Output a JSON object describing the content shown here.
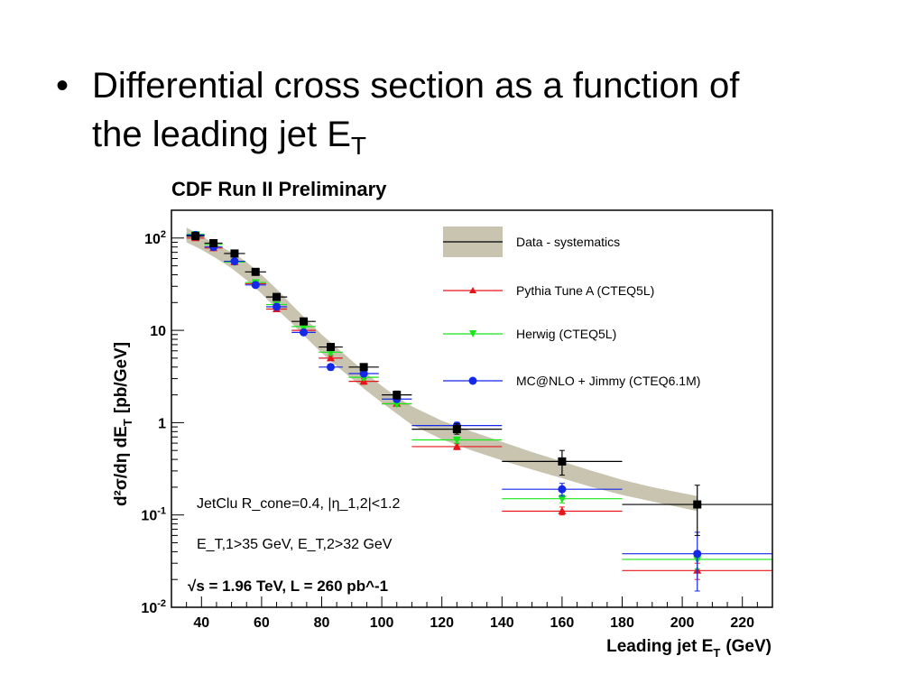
{
  "slide": {
    "bullet_symbol": "•",
    "bullet_line1": "Differential cross section as a function of",
    "bullet_line2_prefix": "the leading jet E",
    "bullet_line2_sub": "T"
  },
  "chart_data": {
    "type": "scatter",
    "title": "CDF Run II Preliminary",
    "xlabel": "Leading jet E",
    "xlabel_sub": "T",
    "xlabel_unit": "(GeV)",
    "ylabel": "d²σ/dη dE",
    "ylabel_sub": "T",
    "ylabel_unit": "[pb/GeV]",
    "xlim": [
      30,
      230
    ],
    "ylim": [
      0.01,
      200
    ],
    "yscale": "log",
    "xticks": [
      40,
      60,
      80,
      100,
      120,
      140,
      160,
      180,
      200,
      220
    ],
    "yticks": [
      {
        "value": 0.01,
        "base": "10",
        "exp": "-2"
      },
      {
        "value": 0.1,
        "base": "10",
        "exp": "-1"
      },
      {
        "value": 1,
        "base": "1",
        "exp": ""
      },
      {
        "value": 10,
        "base": "10",
        "exp": ""
      },
      {
        "value": 100,
        "base": "10",
        "exp": "2"
      }
    ],
    "legend_position": "top-right",
    "annotations": {
      "line1": "JetClu R_cone=0.4, |η_1,2|<1.2",
      "line2": "E_T,1>35 GeV, E_T,2>32 GeV",
      "line3": "√s = 1.96 TeV, L = 260 pb^-1"
    },
    "systematics_band": {
      "name": "Data - systematics",
      "color": "#c8c4b0",
      "x": [
        35,
        40,
        45,
        50,
        55,
        60,
        65,
        70,
        75,
        80,
        85,
        90,
        95,
        100,
        105,
        110,
        120,
        130,
        140,
        150,
        160,
        170,
        180,
        190,
        205
      ],
      "upper": [
        130,
        105,
        85,
        70,
        55,
        40,
        28,
        19,
        13,
        9,
        6.5,
        4.7,
        3.4,
        2.5,
        1.9,
        1.5,
        1.05,
        0.8,
        0.62,
        0.48,
        0.38,
        0.3,
        0.24,
        0.2,
        0.16
      ],
      "lower": [
        90,
        75,
        60,
        47,
        35,
        25,
        17,
        12,
        8.2,
        5.7,
        4.1,
        3.0,
        2.2,
        1.65,
        1.25,
        0.95,
        0.66,
        0.5,
        0.39,
        0.31,
        0.25,
        0.2,
        0.165,
        0.14,
        0.11
      ]
    },
    "series": [
      {
        "name": "Data - systematics",
        "key": "data",
        "color": "#000000",
        "marker": "square",
        "points": [
          {
            "x": 38,
            "y": 105,
            "xerr": 3,
            "yerr": [
              100,
              110
            ]
          },
          {
            "x": 44,
            "y": 88,
            "xerr": 3,
            "yerr": [
              84,
              92
            ]
          },
          {
            "x": 51,
            "y": 68,
            "xerr": 3.5,
            "yerr": [
              65,
              71
            ]
          },
          {
            "x": 58,
            "y": 43,
            "xerr": 3.5,
            "yerr": [
              41,
              45
            ]
          },
          {
            "x": 65,
            "y": 23,
            "xerr": 3.5,
            "yerr": [
              22,
              24
            ]
          },
          {
            "x": 74,
            "y": 12.5,
            "xerr": 4,
            "yerr": [
              11.8,
              13.3
            ]
          },
          {
            "x": 83,
            "y": 6.6,
            "xerr": 4,
            "yerr": [
              6.2,
              7.0
            ]
          },
          {
            "x": 94,
            "y": 4.0,
            "xerr": 5,
            "yerr": [
              3.7,
              4.3
            ]
          },
          {
            "x": 105,
            "y": 2.0,
            "xerr": 5,
            "yerr": [
              1.8,
              2.2
            ]
          },
          {
            "x": 125,
            "y": 0.85,
            "xerr": 15,
            "yerr": [
              0.75,
              0.97
            ]
          },
          {
            "x": 160,
            "y": 0.38,
            "xerr": 20,
            "yerr": [
              0.27,
              0.5
            ]
          },
          {
            "x": 205,
            "y": 0.13,
            "xerr": 25,
            "yerr": [
              0.06,
              0.21
            ]
          }
        ]
      },
      {
        "name": "Pythia Tune A (CTEQ5L)",
        "key": "pythia",
        "color": "#e8141c",
        "marker": "triangle-up",
        "points": [
          {
            "x": 38,
            "y": 100,
            "xerr": 3,
            "yerr": [
              97,
              103
            ]
          },
          {
            "x": 44,
            "y": 78,
            "xerr": 3,
            "yerr": [
              75,
              81
            ]
          },
          {
            "x": 51,
            "y": 55,
            "xerr": 3.5,
            "yerr": [
              53,
              57
            ]
          },
          {
            "x": 58,
            "y": 32,
            "xerr": 3.5,
            "yerr": [
              30.5,
              33.5
            ]
          },
          {
            "x": 65,
            "y": 17,
            "xerr": 3.5,
            "yerr": [
              16.2,
              17.8
            ]
          },
          {
            "x": 74,
            "y": 10,
            "xerr": 4,
            "yerr": [
              9.5,
              10.5
            ]
          },
          {
            "x": 83,
            "y": 5.0,
            "xerr": 4,
            "yerr": [
              4.7,
              5.3
            ]
          },
          {
            "x": 94,
            "y": 2.8,
            "xerr": 5,
            "yerr": [
              2.6,
              3.0
            ]
          },
          {
            "x": 105,
            "y": 1.6,
            "xerr": 5,
            "yerr": [
              1.5,
              1.7
            ]
          },
          {
            "x": 125,
            "y": 0.55,
            "xerr": 15,
            "yerr": [
              0.51,
              0.59
            ]
          },
          {
            "x": 160,
            "y": 0.11,
            "xerr": 20,
            "yerr": [
              0.1,
              0.122
            ]
          },
          {
            "x": 205,
            "y": 0.025,
            "xerr": 25,
            "yerr": [
              0.02,
              0.03
            ]
          }
        ]
      },
      {
        "name": "Herwig (CTEQ5L)",
        "key": "herwig",
        "color": "#18e818",
        "marker": "triangle-down",
        "points": [
          {
            "x": 38,
            "y": 110,
            "xerr": 3,
            "yerr": [
              106,
              114
            ]
          },
          {
            "x": 44,
            "y": 85,
            "xerr": 3,
            "yerr": [
              82,
              88
            ]
          },
          {
            "x": 51,
            "y": 55,
            "xerr": 3.5,
            "yerr": [
              53,
              57
            ]
          },
          {
            "x": 58,
            "y": 33,
            "xerr": 3.5,
            "yerr": [
              31.5,
              34.5
            ]
          },
          {
            "x": 65,
            "y": 19,
            "xerr": 3.5,
            "yerr": [
              18.2,
              19.8
            ]
          },
          {
            "x": 74,
            "y": 11,
            "xerr": 4,
            "yerr": [
              10.5,
              11.5
            ]
          },
          {
            "x": 83,
            "y": 5.8,
            "xerr": 4,
            "yerr": [
              5.5,
              6.1
            ]
          },
          {
            "x": 94,
            "y": 3.1,
            "xerr": 5,
            "yerr": [
              2.9,
              3.3
            ]
          },
          {
            "x": 105,
            "y": 1.6,
            "xerr": 5,
            "yerr": [
              1.5,
              1.7
            ]
          },
          {
            "x": 125,
            "y": 0.65,
            "xerr": 15,
            "yerr": [
              0.6,
              0.7
            ]
          },
          {
            "x": 160,
            "y": 0.15,
            "xerr": 20,
            "yerr": [
              0.135,
              0.165
            ]
          },
          {
            "x": 205,
            "y": 0.033,
            "xerr": 25,
            "yerr": [
              0.026,
              0.04
            ]
          }
        ]
      },
      {
        "name": "MC@NLO + Jimmy (CTEQ6.1M)",
        "key": "mcnlo",
        "color": "#1428e8",
        "marker": "circle",
        "points": [
          {
            "x": 38,
            "y": 108,
            "xerr": 3,
            "yerr": [
              104,
              112
            ]
          },
          {
            "x": 44,
            "y": 80,
            "xerr": 3,
            "yerr": [
              77,
              83
            ]
          },
          {
            "x": 51,
            "y": 56,
            "xerr": 3.5,
            "yerr": [
              54,
              58
            ]
          },
          {
            "x": 58,
            "y": 31,
            "xerr": 3.5,
            "yerr": [
              29.5,
              32.5
            ]
          },
          {
            "x": 65,
            "y": 18,
            "xerr": 3.5,
            "yerr": [
              17.2,
              18.8
            ]
          },
          {
            "x": 74,
            "y": 9.5,
            "xerr": 4,
            "yerr": [
              9.0,
              10.0
            ]
          },
          {
            "x": 83,
            "y": 4.0,
            "xerr": 4,
            "yerr": [
              3.7,
              4.3
            ]
          },
          {
            "x": 94,
            "y": 3.4,
            "xerr": 5,
            "yerr": [
              3.2,
              3.6
            ]
          },
          {
            "x": 105,
            "y": 1.8,
            "xerr": 5,
            "yerr": [
              1.7,
              1.9
            ]
          },
          {
            "x": 125,
            "y": 0.93,
            "xerr": 15,
            "yerr": [
              0.85,
              1.01
            ]
          },
          {
            "x": 160,
            "y": 0.19,
            "xerr": 20,
            "yerr": [
              0.16,
              0.22
            ]
          },
          {
            "x": 205,
            "y": 0.038,
            "xerr": 25,
            "yerr": [
              0.015,
              0.065
            ]
          }
        ]
      }
    ]
  }
}
